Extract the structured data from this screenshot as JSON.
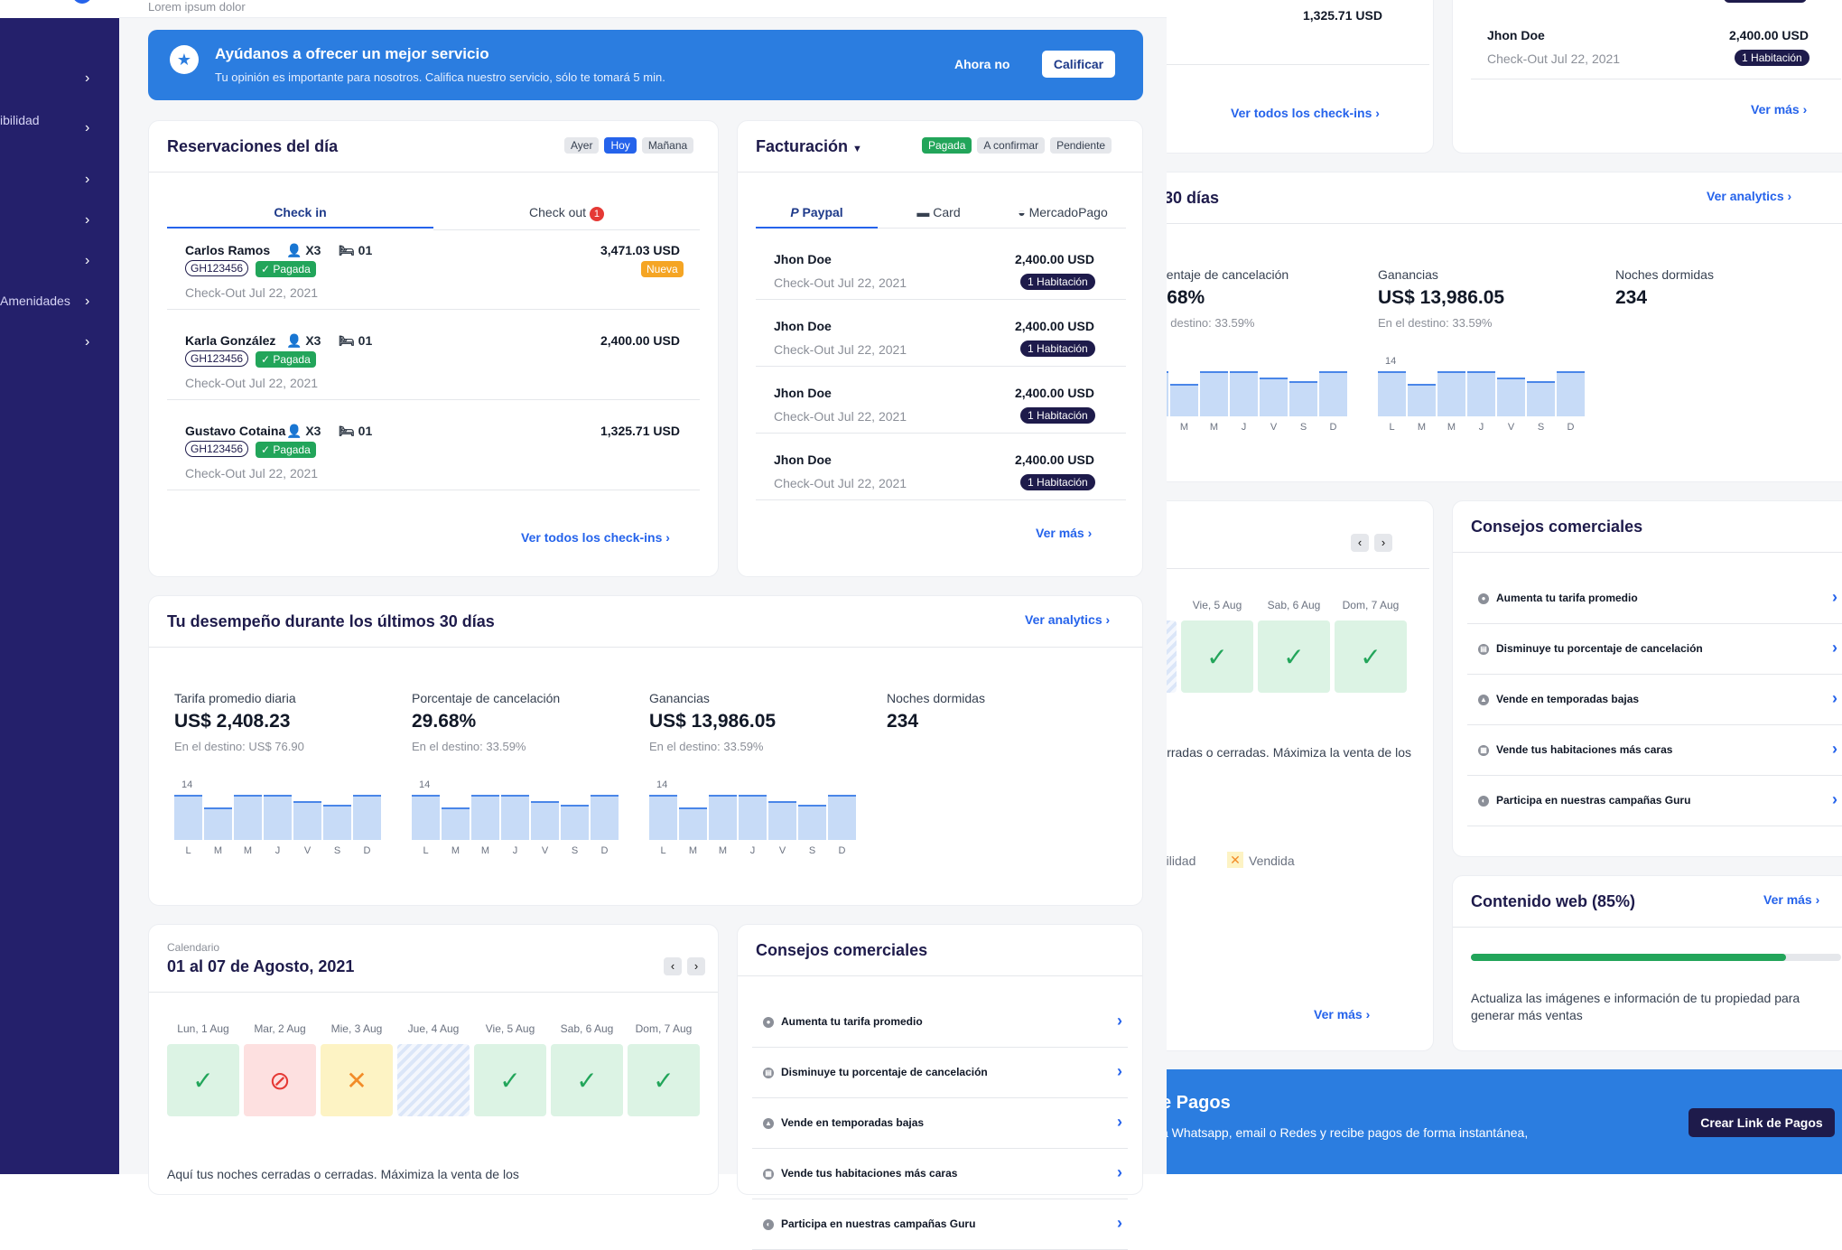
{
  "header": {
    "subtitle": "Lorem ipsum dolor"
  },
  "sidebar": {
    "items": [
      {
        "label": ""
      },
      {
        "label": "ibilidad"
      },
      {
        "label": ""
      },
      {
        "label": ""
      },
      {
        "label": ""
      },
      {
        "label": "Amenidades"
      },
      {
        "label": ""
      }
    ]
  },
  "banner": {
    "title": "Ayúdanos a ofrecer un mejor servicio",
    "text": "Tu opinión es importante para nosotros. Califica nuestro servicio, sólo te tomará 5 min.",
    "later_label": "Ahora no",
    "rate_label": "Calificar"
  },
  "reservations": {
    "title": "Reservaciones del día",
    "filters": [
      "Ayer",
      "Hoy",
      "Mañana"
    ],
    "active_filter": "Hoy",
    "tab_checkin": "Check in",
    "tab_checkout": "Check out",
    "checkout_count": "1",
    "rows": [
      {
        "name": "Carlos Ramos",
        "guests": "X3",
        "room": "01",
        "amount": "3,471.03 USD",
        "code": "GH123456",
        "status": "Pagada",
        "tag": "Nueva",
        "date": "Check-Out Jul 22, 2021"
      },
      {
        "name": "Karla González",
        "guests": "X3",
        "room": "01",
        "amount": "2,400.00 USD",
        "code": "GH123456",
        "status": "Pagada",
        "tag": "",
        "date": "Check-Out Jul 22, 2021"
      },
      {
        "name": "Gustavo Cotaina",
        "guests": "X3",
        "room": "01",
        "amount": "1,325.71 USD",
        "code": "GH123456",
        "status": "Pagada",
        "tag": "",
        "date": "Check-Out Jul 22, 2021"
      }
    ],
    "see_all": "Ver todos los check-ins"
  },
  "billing": {
    "title": "Facturación",
    "filters": [
      "Pagada",
      "A confirmar",
      "Pendiente"
    ],
    "tabs": [
      "Paypal",
      "Card",
      "MercadoPago"
    ],
    "rows": [
      {
        "name": "Jhon Doe",
        "amount": "2,400.00 USD",
        "date": "Check-Out Jul 22, 2021",
        "badge_num": "1",
        "badge": "Habitación"
      },
      {
        "name": "Jhon Doe",
        "amount": "2,400.00 USD",
        "date": "Check-Out Jul 22, 2021",
        "badge_num": "1",
        "badge": "Habitación"
      },
      {
        "name": "Jhon Doe",
        "amount": "2,400.00 USD",
        "date": "Check-Out Jul 22, 2021",
        "badge_num": "1",
        "badge": "Habitación"
      },
      {
        "name": "Jhon Doe",
        "amount": "2,400.00 USD",
        "date": "Check-Out Jul 22, 2021",
        "badge_num": "1",
        "badge": "Habitación"
      }
    ],
    "see_more": "Ver más"
  },
  "performance": {
    "title": "Tu desempeño durante los últimos 30 días",
    "link": "Ver analytics",
    "metrics": [
      {
        "label": "Tarifa promedio diaria",
        "value": "US$ 2,408.23",
        "sub": "En el destino: US$ 76.90"
      },
      {
        "label": "Porcentaje de cancelación",
        "value": "29.68%",
        "sub": "En el destino: 33.59%"
      },
      {
        "label": "Ganancias",
        "value": "US$ 13,986.05",
        "sub": "En el destino: 33.59%"
      },
      {
        "label": "Noches dormidas",
        "value": "234",
        "sub": ""
      }
    ],
    "chart_top_label": "14",
    "days": [
      "L",
      "M",
      "M",
      "J",
      "V",
      "S",
      "D"
    ],
    "bar_values": [
      14,
      10,
      14,
      14,
      12,
      11,
      14
    ]
  },
  "calendar": {
    "kicker": "Calendario",
    "title": "01 al 07 de Agosto, 2021",
    "days": [
      "Lun, 1 Aug",
      "Mar, 2 Aug",
      "Mie, 3 Aug",
      "Jue, 4 Aug",
      "Vie, 5 Aug",
      "Sab, 6 Aug",
      "Dom, 7 Aug"
    ],
    "states": [
      "available",
      "blocked",
      "sold",
      "hatched",
      "available",
      "available",
      "available"
    ],
    "note": "Aquí tus noches cerradas o cerradas. Máximiza la venta de los",
    "legend_avail": "nibilidad",
    "legend_sold": "Vendida",
    "see_more": "Ver más"
  },
  "tips": {
    "title": "Consejos comerciales",
    "items": [
      "Aumenta tu tarifa promedio",
      "Disminuye tu porcentaje de cancelación",
      "Vende en temporadas bajas",
      "Vende tus habitaciones más caras",
      "Participa en nuestras campañas Guru"
    ]
  },
  "web_content": {
    "title": "Contenido web (85%)",
    "link": "Ver más",
    "progress": 0.85,
    "text": "Actualiza las imágenes e información de tu propiedad para generar más ventas"
  },
  "payments": {
    "title": "e Pagos",
    "text": "a Whatsapp, email o Redes y recibe pagos de forma instantánea,",
    "button": "Crear Link de Pagos"
  },
  "colors": {
    "primary": "#2563eb",
    "sidebar": "#24206b",
    "green": "#22a55a",
    "navy": "#1e1b4b"
  }
}
